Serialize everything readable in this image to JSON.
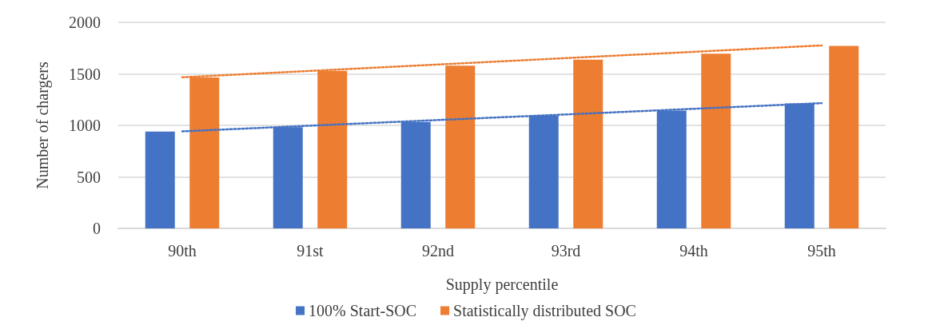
{
  "chart_data": {
    "type": "bar",
    "xlabel": "Supply percentile",
    "ylabel": "Number of chargers",
    "categories": [
      "90th",
      "91st",
      "92nd",
      "93rd",
      "94th",
      "95th"
    ],
    "series": [
      {
        "name": "100% Start-SOC",
        "color": "#4472c4",
        "values": [
          940,
          982,
          1033,
          1095,
          1143,
          1214
        ]
      },
      {
        "name": "Statistically distributed SOC",
        "color": "#ed7d31",
        "values": [
          1465,
          1530,
          1580,
          1638,
          1696,
          1771
        ]
      },
      {
        "type": "line",
        "color": "#4472c4",
        "line_style": "dotted",
        "marker": "none",
        "values": [
          942,
          997,
          1052,
          1106,
          1161,
          1216
        ]
      },
      {
        "type": "line",
        "color": "#ed7d31",
        "line_style": "dotted",
        "marker": "none",
        "values": [
          1467,
          1529,
          1591,
          1653,
          1714,
          1776
        ]
      }
    ],
    "ylim": [
      0,
      2000
    ],
    "yticks": [
      0,
      500,
      1000,
      1500,
      2000
    ],
    "grid": "y",
    "legend": "bottom"
  }
}
